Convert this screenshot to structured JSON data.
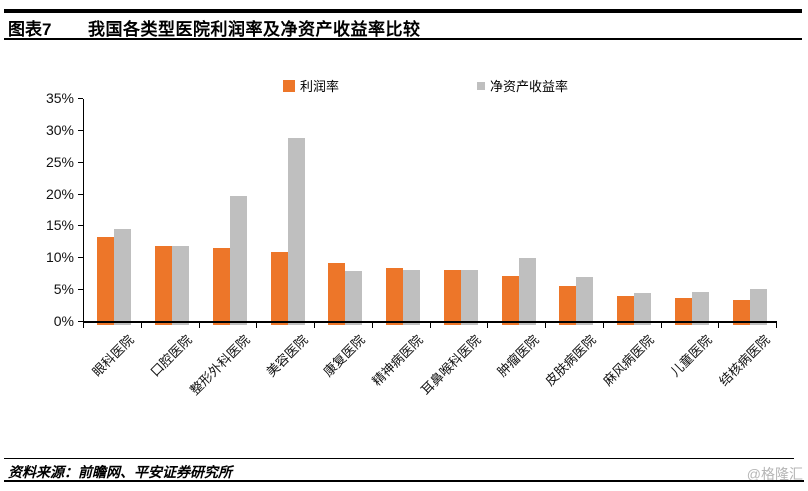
{
  "header": {
    "tag": "图表7",
    "title": "我国各类型医院利润率及净资产收益率比较"
  },
  "legend": {
    "items": [
      {
        "label": "利润率",
        "color": "#ED7629"
      },
      {
        "label": "净资产收益率",
        "color": "#BFBFBF"
      }
    ]
  },
  "chart_data": {
    "type": "bar",
    "title": "我国各类型医院利润率及净资产收益率比较",
    "categories": [
      "眼科医院",
      "口腔医院",
      "整形外科医院",
      "美容医院",
      "康复医院",
      "精神病医院",
      "耳鼻喉科医院",
      "肿瘤医院",
      "皮肤病医院",
      "麻风病医院",
      "儿童医院",
      "结核病医院"
    ],
    "series": [
      {
        "name": "利润率",
        "color": "#ED7629",
        "values": [
          13.4,
          12.0,
          11.6,
          11.0,
          9.2,
          8.5,
          8.1,
          7.2,
          5.6,
          4.1,
          3.8,
          3.5
        ]
      },
      {
        "name": "净资产收益率",
        "color": "#BFBFBF",
        "values": [
          14.6,
          12.0,
          19.7,
          28.9,
          8.0,
          8.1,
          8.1,
          10.1,
          7.0,
          4.5,
          4.7,
          5.2
        ]
      }
    ],
    "xlabel": "",
    "ylabel": "",
    "ylim": [
      0,
      35
    ],
    "ytick_step": 5,
    "ytick_labels": [
      "0%",
      "5%",
      "10%",
      "15%",
      "20%",
      "25%",
      "30%",
      "35%"
    ],
    "grid": false,
    "legend_position": "top"
  },
  "footer": {
    "source": "资料来源：前瞻网、平安证券研究所",
    "watermark": "@格隆汇"
  }
}
